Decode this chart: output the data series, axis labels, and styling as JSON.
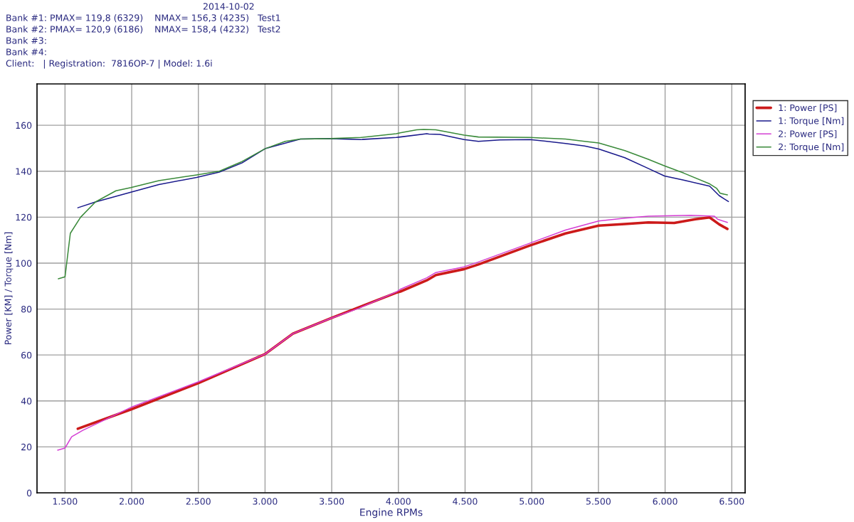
{
  "chart_data": {
    "type": "line",
    "xlabel": "Engine RPMs",
    "ylabel": "Power [KM] / Torque [Nm]",
    "annotations": [
      "2014-10-02",
      "Bank #1: PMAX= 119,8 (6329)    NMAX= 156,3 (4235)   Test1",
      "Bank #2: PMAX= 120,9 (6186)    NMAX= 158,4 (4232)   Test2",
      "Bank #3:",
      "Bank #4:",
      "Client:   | Registration:  7816OP-7 | Model: 1.6i"
    ],
    "xlim": [
      1290,
      6600
    ],
    "ylim": [
      0,
      178
    ],
    "xticks": [
      {
        "value": 1500,
        "label": "1.500"
      },
      {
        "value": 2000,
        "label": "2.000"
      },
      {
        "value": 2500,
        "label": "2.500"
      },
      {
        "value": 3000,
        "label": "3.000"
      },
      {
        "value": 3500,
        "label": "3.500"
      },
      {
        "value": 4000,
        "label": "4.000"
      },
      {
        "value": 4500,
        "label": "4.500"
      },
      {
        "value": 5000,
        "label": "5.000"
      },
      {
        "value": 5500,
        "label": "5.500"
      },
      {
        "value": 6000,
        "label": "6.000"
      },
      {
        "value": 6500,
        "label": "6.500"
      }
    ],
    "yticks": [
      0,
      20,
      40,
      60,
      80,
      100,
      120,
      140,
      160
    ],
    "grid": true,
    "legend": "top right",
    "marker": "none",
    "line_style": "solid",
    "series": [
      {
        "name": "1: Power [PS]",
        "color": "#cc1a1a",
        "x": [
          1596,
          1994,
          2498,
          3000,
          3209,
          3498,
          3984,
          4014,
          4213,
          4281,
          4493,
          4600,
          4987,
          5253,
          5502,
          5698,
          5874,
          6068,
          6227,
          6334,
          6405,
          6467
        ],
        "values": [
          27.9,
          36.3,
          47.7,
          60.4,
          69.3,
          76.1,
          87.1,
          87.6,
          92.5,
          94.8,
          97.4,
          99.4,
          107.7,
          112.9,
          116.3,
          117,
          117.7,
          117.5,
          119.1,
          119.9,
          116.9,
          114.9
        ]
      },
      {
        "name": "1: Torque [Nm]",
        "color": "#1a1a8c",
        "x": [
          1596,
          1728,
          1994,
          2204,
          2487,
          2657,
          2827,
          3000,
          3265,
          3490,
          3718,
          3984,
          4014,
          4213,
          4229,
          4311,
          4493,
          4600,
          4762,
          4987,
          5253,
          5396,
          5502,
          5698,
          5874,
          5996,
          6139,
          6334,
          6405,
          6475
        ],
        "values": [
          124.1,
          126.6,
          130.9,
          134.2,
          137.3,
          139.6,
          143.6,
          149.8,
          154,
          154.2,
          153.8,
          154.7,
          154.9,
          156.3,
          156.2,
          156,
          153.8,
          153,
          153.6,
          153.8,
          152.1,
          151,
          149.7,
          145.9,
          141.2,
          137.9,
          136.1,
          133.5,
          129.4,
          126.8
        ]
      },
      {
        "name": "2: Power [PS]",
        "color": "#d43fd4",
        "x": [
          1445,
          1500,
          1550,
          1633,
          1994,
          2498,
          3000,
          3209,
          3498,
          3701,
          3984,
          4014,
          4213,
          4281,
          4493,
          4600,
          4987,
          5253,
          5502,
          5698,
          5874,
          6192,
          6370,
          6394,
          6467
        ],
        "values": [
          18.6,
          19.5,
          24.4,
          27.2,
          37.2,
          48.3,
          60.4,
          69.3,
          76.1,
          80.3,
          87.4,
          88.6,
          93.6,
          95.9,
          98.4,
          100.5,
          108.7,
          114.4,
          118.3,
          119.6,
          120.4,
          120.8,
          120.4,
          119.1,
          117.7
        ]
      },
      {
        "name": "2: Torque [Nm]",
        "color": "#3a8a3a",
        "x": [
          1450,
          1500,
          1540,
          1617,
          1728,
          1882,
          1994,
          2204,
          2487,
          2657,
          2827,
          3000,
          3152,
          3265,
          3490,
          3718,
          3984,
          4014,
          4138,
          4190,
          4280,
          4493,
          4600,
          4987,
          5253,
          5396,
          5502,
          5698,
          5874,
          5996,
          6139,
          6334,
          6387,
          6413,
          6467
        ],
        "values": [
          93.2,
          94,
          113,
          120,
          126.6,
          131.5,
          132.9,
          135.9,
          138.4,
          140,
          144.2,
          149.8,
          153,
          154,
          154.2,
          154.7,
          156.3,
          156.7,
          158,
          158.2,
          158,
          155.7,
          154.9,
          154.7,
          154,
          153,
          152.3,
          149,
          145.2,
          142.3,
          139.2,
          134.5,
          132.5,
          130.4,
          129.7
        ]
      }
    ]
  }
}
